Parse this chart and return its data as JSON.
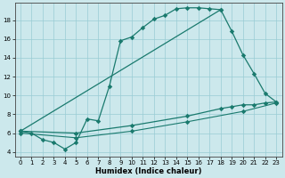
{
  "xlabel": "Humidex (Indice chaleur)",
  "bg_color": "#cce8ec",
  "grid_color": "#99ccd4",
  "line_color": "#1a7a6e",
  "xlim": [
    -0.5,
    23.5
  ],
  "ylim": [
    3.5,
    19.8
  ],
  "xticks": [
    0,
    1,
    2,
    3,
    4,
    5,
    6,
    7,
    8,
    9,
    10,
    11,
    12,
    13,
    14,
    15,
    16,
    17,
    18,
    19,
    20,
    21,
    22,
    23
  ],
  "yticks": [
    4,
    6,
    8,
    10,
    12,
    14,
    16,
    18
  ],
  "line1_x": [
    0,
    1,
    2,
    3,
    4,
    5,
    6,
    7,
    8,
    9,
    10,
    11,
    12,
    13,
    14,
    15,
    16,
    17,
    18
  ],
  "line1_y": [
    6.2,
    6.0,
    5.3,
    5.0,
    4.3,
    5.0,
    7.5,
    7.3,
    11.0,
    15.8,
    16.2,
    17.2,
    18.1,
    18.5,
    19.2,
    19.3,
    19.3,
    19.2,
    19.1
  ],
  "line2_x": [
    0,
    18,
    19,
    20,
    21,
    22,
    23
  ],
  "line2_y": [
    6.2,
    19.1,
    16.8,
    14.3,
    12.3,
    10.2,
    9.3
  ],
  "line3_x": [
    0,
    5,
    10,
    15,
    18,
    19,
    20,
    21,
    22,
    23
  ],
  "line3_y": [
    6.2,
    6.0,
    6.8,
    7.8,
    8.6,
    8.8,
    9.0,
    9.0,
    9.2,
    9.3
  ],
  "line4_x": [
    0,
    5,
    10,
    15,
    20,
    23
  ],
  "line4_y": [
    6.0,
    5.5,
    6.2,
    7.2,
    8.3,
    9.2
  ]
}
